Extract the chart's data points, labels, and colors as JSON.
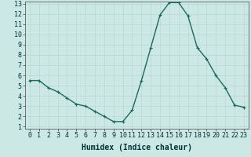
{
  "x": [
    0,
    1,
    2,
    3,
    4,
    5,
    6,
    7,
    8,
    9,
    10,
    11,
    12,
    13,
    14,
    15,
    16,
    17,
    18,
    19,
    20,
    21,
    22,
    23
  ],
  "y": [
    5.5,
    5.5,
    4.8,
    4.4,
    3.8,
    3.2,
    3.0,
    2.5,
    2.0,
    1.5,
    1.5,
    2.6,
    5.5,
    8.7,
    11.9,
    13.1,
    13.1,
    11.8,
    8.7,
    7.6,
    6.0,
    4.8,
    3.1,
    2.9
  ],
  "xlabel": "Humidex (Indice chaleur)",
  "ylim": [
    1,
    13
  ],
  "xlim": [
    -0.5,
    23.5
  ],
  "yticks": [
    1,
    2,
    3,
    4,
    5,
    6,
    7,
    8,
    9,
    10,
    11,
    12,
    13
  ],
  "xticks": [
    0,
    1,
    2,
    3,
    4,
    5,
    6,
    7,
    8,
    9,
    10,
    11,
    12,
    13,
    14,
    15,
    16,
    17,
    18,
    19,
    20,
    21,
    22,
    23
  ],
  "line_color": "#1a6b5a",
  "marker": "+",
  "bg_color": "#cce8e4",
  "grid_color": "#b8d8d4",
  "xlabel_fontsize": 7,
  "tick_fontsize": 6,
  "marker_size": 3,
  "linewidth": 1.0
}
